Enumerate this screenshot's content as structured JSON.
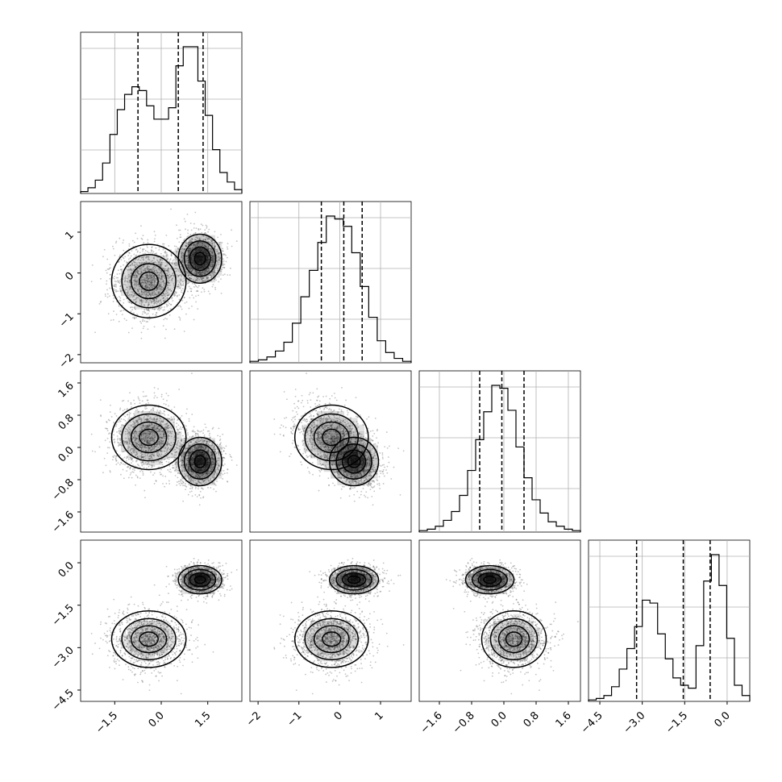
{
  "chart_data": {
    "type": "corner",
    "variables": 4,
    "grid": true,
    "colors": {
      "line": "#000000",
      "scatter": "#555555",
      "density": "#000000",
      "grid": "#b0b0b0"
    },
    "ticks": [
      {
        "values": [
          -1.5,
          0.0,
          1.5
        ],
        "labels": [
          "−1.5",
          "0.0",
          "1.5"
        ]
      },
      {
        "values": [
          -2,
          -1,
          0,
          1
        ],
        "labels": [
          "−2",
          "−1",
          "0",
          "1"
        ]
      },
      {
        "values": [
          -1.6,
          -0.8,
          0.0,
          0.8,
          1.6
        ],
        "labels": [
          "−1.6",
          "−0.8",
          "0.0",
          "0.8",
          "1.6"
        ]
      },
      {
        "values": [
          -4.5,
          -3.0,
          -1.5,
          0.0
        ],
        "labels": [
          "−4.5",
          "−3.0",
          "−1.5",
          "0.0"
        ]
      }
    ],
    "ranges": [
      [
        -2.6,
        2.6
      ],
      [
        -2.2,
        1.75
      ],
      [
        -2.1,
        1.9
      ],
      [
        -4.9,
        0.8
      ]
    ],
    "quantiles": [
      [
        -0.75,
        0.55,
        1.35
      ],
      [
        -0.45,
        0.1,
        0.55
      ],
      [
        -0.6,
        -0.05,
        0.5
      ],
      [
        -3.2,
        -1.55,
        -0.6
      ]
    ],
    "histograms": [
      [
        1,
        3,
        7,
        16,
        31,
        44,
        52,
        56,
        54,
        46,
        39,
        39,
        45,
        67,
        77,
        77,
        59,
        41,
        23,
        11,
        6,
        2
      ],
      [
        1,
        2,
        4,
        8,
        14,
        27,
        45,
        63,
        82,
        100,
        98,
        93,
        75,
        52,
        31,
        15,
        7,
        3,
        1
      ],
      [
        1,
        2,
        4,
        8,
        14,
        25,
        42,
        63,
        82,
        100,
        98,
        83,
        58,
        37,
        22,
        13,
        7,
        4,
        2,
        1
      ],
      [
        1,
        2,
        4,
        10,
        22,
        36,
        51,
        69,
        67,
        46,
        29,
        16,
        11,
        9,
        38,
        82,
        100,
        79,
        43,
        11,
        4
      ]
    ],
    "mixture": [
      {
        "weight": 0.5,
        "mean": [
          -0.4,
          -0.2,
          0.25,
          -2.7
        ],
        "sd": [
          0.6,
          0.45,
          0.4,
          0.5
        ]
      },
      {
        "weight": 0.5,
        "mean": [
          1.25,
          0.35,
          -0.35,
          -0.6
        ],
        "sd": [
          0.35,
          0.3,
          0.3,
          0.25
        ]
      }
    ],
    "shared_offset": 0.3,
    "contour_levels": [
      0.12,
      0.3,
      0.55,
      0.8
    ]
  }
}
